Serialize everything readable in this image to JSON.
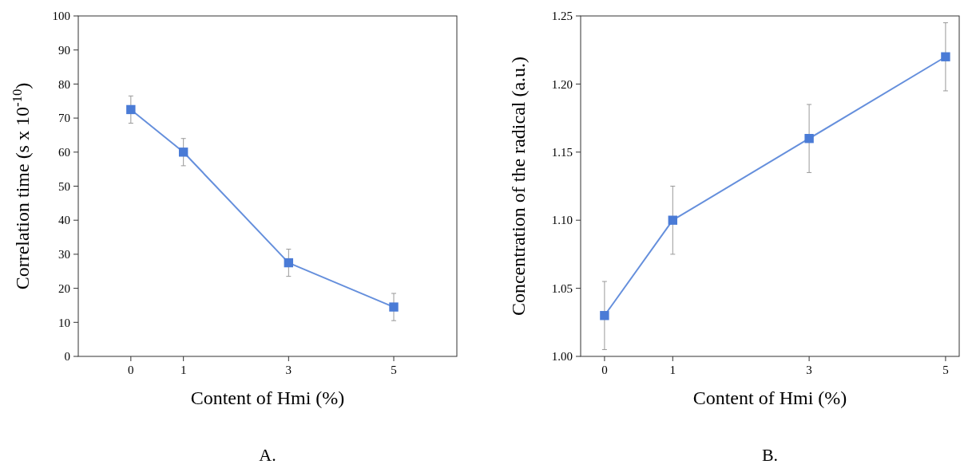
{
  "chart_data": [
    {
      "type": "line",
      "xlabel": "Content of Hmi (%)",
      "ylabel": "Correlation time (s x 10$^{-10}$)",
      "x": [
        0,
        1,
        3,
        5
      ],
      "xlim": [
        -1,
        6.2
      ],
      "xticks": [
        0,
        1,
        3,
        5
      ],
      "ylim": [
        0,
        100
      ],
      "yticks": [
        0,
        10,
        20,
        30,
        40,
        50,
        60,
        70,
        80,
        90,
        100
      ],
      "marker": "square",
      "series": [
        {
          "color": "#4a7bd6",
          "values": [
            72.5,
            60,
            27.5,
            14.5
          ],
          "errors": [
            4,
            4,
            4,
            4
          ]
        }
      ],
      "annotations": [
        "A."
      ]
    },
    {
      "type": "line",
      "xlabel": "Content of Hmi (%)",
      "ylabel": "Concentration of the radical (a.u.)",
      "x": [
        0,
        1,
        3,
        5
      ],
      "xlim": [
        -0.35,
        5.2
      ],
      "xticks": [
        0,
        1,
        3,
        5
      ],
      "ylim": [
        1,
        1.25
      ],
      "yticks": [
        {
          "value": 1,
          "label": "1.00"
        },
        1.05,
        {
          "value": 1.1,
          "label": "1.10"
        },
        1.15,
        {
          "value": 1.2,
          "label": "1.20"
        },
        1.25
      ],
      "marker": "square",
      "series": [
        {
          "color": "#4a7bd6",
          "values": [
            1.03,
            1.1,
            1.16,
            1.22
          ],
          "errors": [
            0.025,
            0.025,
            0.025,
            0.025
          ]
        }
      ],
      "annotations": [
        "B."
      ]
    }
  ]
}
